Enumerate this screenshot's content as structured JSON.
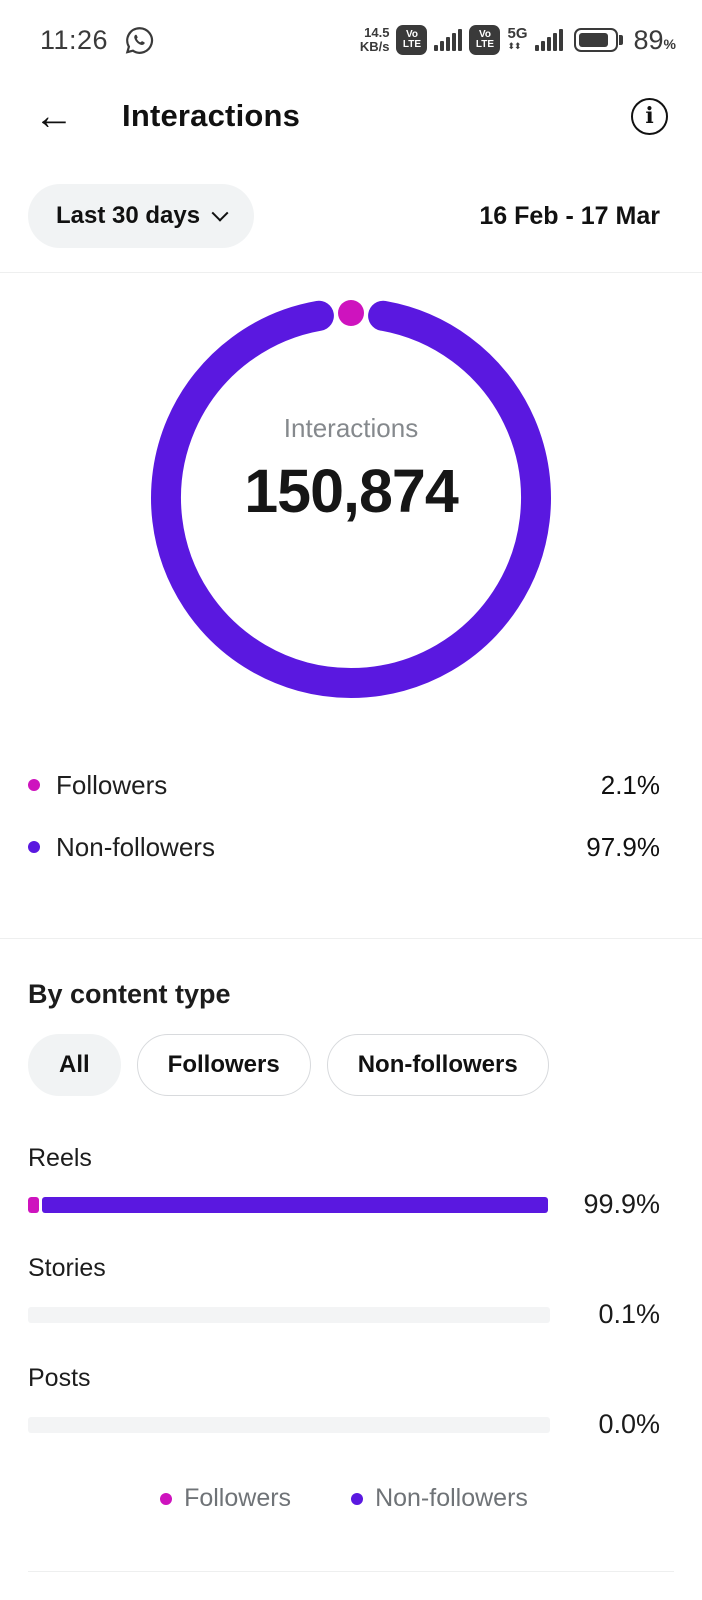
{
  "status_bar": {
    "time": "11:26",
    "net_speed_value": "14.5",
    "net_speed_unit": "KB/s",
    "volte_line1": "Vo",
    "volte_line2": "LTE",
    "network_type": "5G",
    "battery_value": "89",
    "percent_symbol": "%"
  },
  "header": {
    "title": "Interactions"
  },
  "filter": {
    "period_label": "Last 30 days",
    "date_range": "16 Feb - 17 Mar"
  },
  "donut": {
    "center_label": "Interactions",
    "center_value": "150,874"
  },
  "audience_legend": {
    "items": [
      {
        "label": "Followers",
        "value": "2.1%",
        "color": "#ce13be"
      },
      {
        "label": "Non-followers",
        "value": "97.9%",
        "color": "#5a18e0"
      }
    ]
  },
  "content_type": {
    "heading": "By content type",
    "tabs": [
      {
        "label": "All",
        "selected": true
      },
      {
        "label": "Followers",
        "selected": false
      },
      {
        "label": "Non-followers",
        "selected": false
      }
    ],
    "bars": [
      {
        "label": "Reels",
        "value_label": "99.9%",
        "followers_width": 2.2,
        "nonfollowers_width": 96.8
      },
      {
        "label": "Stories",
        "value_label": "0.1%",
        "followers_width": 0,
        "nonfollowers_width": 0
      },
      {
        "label": "Posts",
        "value_label": "0.0%",
        "followers_width": 0,
        "nonfollowers_width": 0
      }
    ],
    "legend": [
      {
        "label": "Followers",
        "color": "#ce13be"
      },
      {
        "label": "Non-followers",
        "color": "#5a18e0"
      }
    ]
  },
  "colors": {
    "followers": "#ce13be",
    "non_followers": "#5a18e0",
    "track": "#f3f4f5"
  },
  "chart_data": [
    {
      "type": "pie",
      "style": "donut",
      "title": "Interactions",
      "total_label": "150,874",
      "total_value": 150874,
      "labels": [
        "Followers",
        "Non-followers"
      ],
      "values": [
        2.1,
        97.9
      ],
      "unit": "%",
      "colors": [
        "#ce13be",
        "#5a18e0"
      ],
      "legend_position": "below"
    },
    {
      "type": "bar",
      "orientation": "horizontal",
      "title": "By content type",
      "categories": [
        "Reels",
        "Stories",
        "Posts"
      ],
      "values": [
        99.9,
        0.1,
        0.0
      ],
      "unit": "%",
      "xlim": [
        0,
        100
      ],
      "series": [
        {
          "name": "Followers",
          "color": "#ce13be"
        },
        {
          "name": "Non-followers",
          "color": "#5a18e0"
        }
      ],
      "legend_position": "bottom-center"
    }
  ]
}
